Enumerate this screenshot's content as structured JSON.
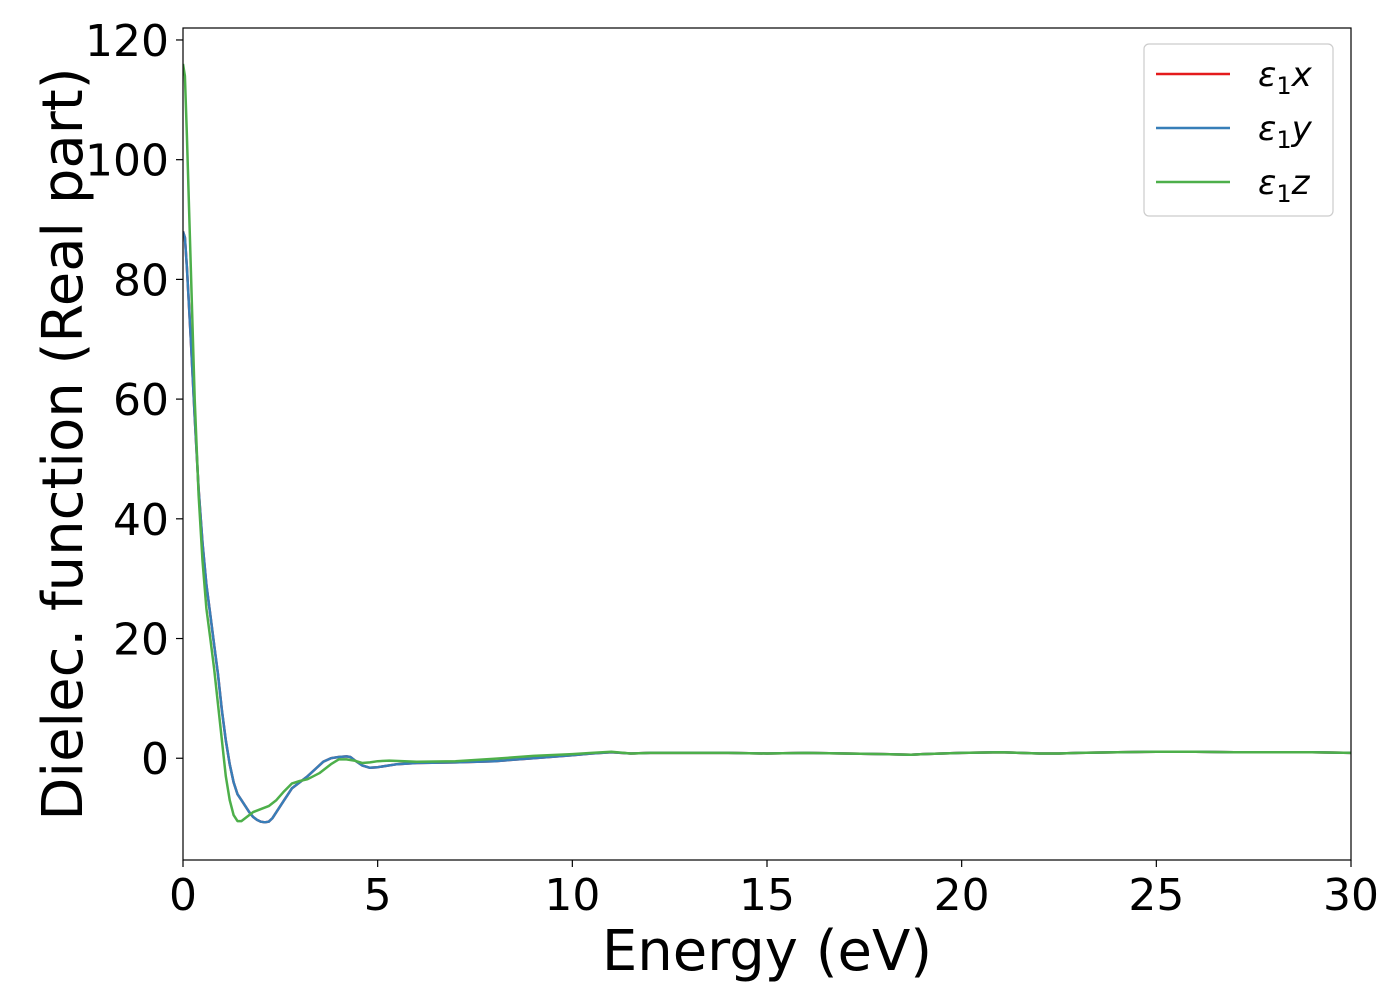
{
  "chart_data": {
    "type": "line",
    "title": "",
    "xlabel": "Energy (eV)",
    "ylabel": "Dielec. function (Real part)",
    "xlim": [
      0,
      30
    ],
    "ylim": [
      -17,
      122
    ],
    "xticks": [
      0,
      5,
      10,
      15,
      20,
      25,
      30
    ],
    "yticks": [
      0,
      20,
      40,
      60,
      80,
      100,
      120
    ],
    "grid": false,
    "legend": "top-right",
    "series": [
      {
        "name": "ε₁x",
        "label_main": "ε",
        "label_sub": "1",
        "label_axis": "x",
        "color": "#e41a1c",
        "x": [
          0,
          0.05,
          0.1,
          0.2,
          0.3,
          0.4,
          0.5,
          0.6,
          0.7,
          0.8,
          0.9,
          1.0,
          1.1,
          1.2,
          1.3,
          1.4,
          1.5,
          1.6,
          1.7,
          1.8,
          1.9,
          2.0,
          2.1,
          2.2,
          2.3,
          2.4,
          2.5,
          2.6,
          2.7,
          2.8,
          3.0,
          3.2,
          3.4,
          3.6,
          3.8,
          4.0,
          4.2,
          4.3,
          4.4,
          4.6,
          4.8,
          5.0,
          5.5,
          6.0,
          7.0,
          8.0,
          9.0,
          10.0,
          10.5,
          11.0,
          11.5,
          12.0,
          13.0,
          14.0,
          15.0,
          16.0,
          17.0,
          18.0,
          18.7,
          19.0,
          20.0,
          21.0,
          22.0,
          22.5,
          23.0,
          24.0,
          25.0,
          25.5,
          26.0,
          27.0,
          28.0,
          29.0,
          30.0
        ],
        "y": [
          88,
          87,
          82,
          70,
          57,
          45,
          36,
          29,
          24,
          19,
          14,
          8,
          3,
          -1,
          -4,
          -6,
          -7,
          -8,
          -9,
          -9.8,
          -10.3,
          -10.6,
          -10.7,
          -10.6,
          -10.0,
          -9.0,
          -8.0,
          -7.0,
          -6.0,
          -5.0,
          -4.0,
          -3.0,
          -1.8,
          -0.6,
          0.0,
          0.2,
          0.3,
          0.2,
          -0.3,
          -1.2,
          -1.6,
          -1.5,
          -1.0,
          -0.8,
          -0.7,
          -0.5,
          0.0,
          0.5,
          0.8,
          1.0,
          0.8,
          0.9,
          0.9,
          0.9,
          0.8,
          0.9,
          0.8,
          0.7,
          0.6,
          0.7,
          0.9,
          1.0,
          0.8,
          0.8,
          0.9,
          1.0,
          1.1,
          1.1,
          1.1,
          1.0,
          1.0,
          1.0,
          0.9
        ]
      },
      {
        "name": "ε₁y",
        "label_main": "ε",
        "label_sub": "1",
        "label_axis": "y",
        "color": "#377eb8",
        "x": [
          0,
          0.05,
          0.1,
          0.2,
          0.3,
          0.4,
          0.5,
          0.6,
          0.7,
          0.8,
          0.9,
          1.0,
          1.1,
          1.2,
          1.3,
          1.4,
          1.5,
          1.6,
          1.7,
          1.8,
          1.9,
          2.0,
          2.1,
          2.2,
          2.3,
          2.4,
          2.5,
          2.6,
          2.7,
          2.8,
          3.0,
          3.2,
          3.4,
          3.6,
          3.8,
          4.0,
          4.2,
          4.3,
          4.4,
          4.6,
          4.8,
          5.0,
          5.5,
          6.0,
          7.0,
          8.0,
          9.0,
          10.0,
          10.5,
          11.0,
          11.5,
          12.0,
          13.0,
          14.0,
          15.0,
          16.0,
          17.0,
          18.0,
          18.7,
          19.0,
          20.0,
          21.0,
          22.0,
          22.5,
          23.0,
          24.0,
          25.0,
          25.5,
          26.0,
          27.0,
          28.0,
          29.0,
          30.0
        ],
        "y": [
          88,
          87,
          82,
          70,
          57,
          45,
          36,
          29,
          24,
          19,
          14,
          8,
          3,
          -1,
          -4,
          -6,
          -7,
          -8,
          -9,
          -9.8,
          -10.3,
          -10.6,
          -10.7,
          -10.6,
          -10.0,
          -9.0,
          -8.0,
          -7.0,
          -6.0,
          -5.0,
          -4.0,
          -3.0,
          -1.8,
          -0.6,
          0.0,
          0.2,
          0.3,
          0.2,
          -0.3,
          -1.2,
          -1.6,
          -1.5,
          -1.0,
          -0.8,
          -0.7,
          -0.5,
          0.0,
          0.5,
          0.8,
          1.0,
          0.8,
          0.9,
          0.9,
          0.9,
          0.8,
          0.9,
          0.8,
          0.7,
          0.6,
          0.7,
          0.9,
          1.0,
          0.8,
          0.8,
          0.9,
          1.0,
          1.1,
          1.1,
          1.1,
          1.0,
          1.0,
          1.0,
          0.9
        ]
      },
      {
        "name": "ε₁z",
        "label_main": "ε",
        "label_sub": "1",
        "label_axis": "z",
        "color": "#4daf4a",
        "x": [
          0,
          0.05,
          0.1,
          0.2,
          0.3,
          0.4,
          0.5,
          0.6,
          0.7,
          0.8,
          0.9,
          1.0,
          1.1,
          1.2,
          1.3,
          1.4,
          1.5,
          1.6,
          1.8,
          2.0,
          2.2,
          2.4,
          2.6,
          2.8,
          3.0,
          3.2,
          3.5,
          3.8,
          4.0,
          4.2,
          4.4,
          4.6,
          4.8,
          5.0,
          5.3,
          6.0,
          7.0,
          8.0,
          9.0,
          10.0,
          10.5,
          11.0,
          11.5,
          12.0,
          13.0,
          14.0,
          15.0,
          16.0,
          17.0,
          18.0,
          18.7,
          19.0,
          20.0,
          21.0,
          22.0,
          22.5,
          23.0,
          24.0,
          25.0,
          25.5,
          26.0,
          27.0,
          28.0,
          29.0,
          30.0
        ],
        "y": [
          116,
          114,
          104,
          82,
          60,
          44,
          33,
          25,
          20,
          15,
          9,
          3,
          -3,
          -7,
          -9.5,
          -10.5,
          -10.5,
          -10.0,
          -9.0,
          -8.5,
          -8.0,
          -7.0,
          -5.5,
          -4.2,
          -3.8,
          -3.5,
          -2.5,
          -1.0,
          -0.2,
          -0.2,
          -0.4,
          -0.8,
          -0.7,
          -0.5,
          -0.4,
          -0.6,
          -0.5,
          -0.1,
          0.4,
          0.7,
          0.9,
          1.1,
          0.8,
          0.9,
          0.9,
          0.9,
          0.8,
          0.9,
          0.8,
          0.7,
          0.6,
          0.7,
          0.9,
          1.0,
          0.8,
          0.8,
          0.9,
          1.0,
          1.1,
          1.1,
          1.1,
          1.0,
          1.0,
          1.0,
          0.9
        ]
      }
    ]
  }
}
